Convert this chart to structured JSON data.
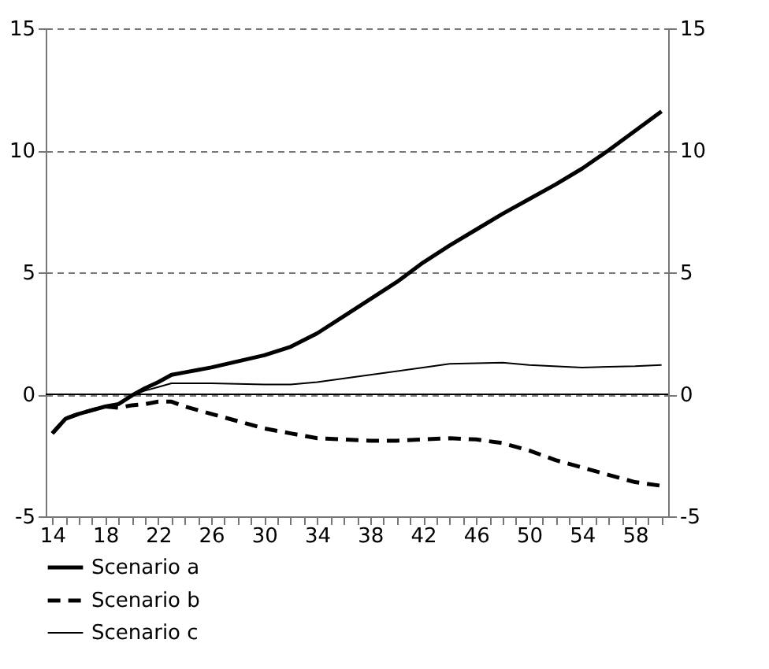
{
  "chart_data": {
    "type": "line",
    "xlim": [
      13.5,
      60.5
    ],
    "xticks": [
      14,
      {
        "value": 15,
        "label": null
      },
      {
        "value": 16,
        "label": null
      },
      {
        "value": 17,
        "label": null
      },
      18,
      {
        "value": 19,
        "label": null
      },
      {
        "value": 20,
        "label": null
      },
      {
        "value": 21,
        "label": null
      },
      22,
      {
        "value": 23,
        "label": null
      },
      {
        "value": 24,
        "label": null
      },
      {
        "value": 25,
        "label": null
      },
      26,
      {
        "value": 27,
        "label": null
      },
      {
        "value": 28,
        "label": null
      },
      {
        "value": 29,
        "label": null
      },
      30,
      {
        "value": 31,
        "label": null
      },
      {
        "value": 32,
        "label": null
      },
      {
        "value": 33,
        "label": null
      },
      34,
      {
        "value": 35,
        "label": null
      },
      {
        "value": 36,
        "label": null
      },
      {
        "value": 37,
        "label": null
      },
      38,
      {
        "value": 39,
        "label": null
      },
      {
        "value": 40,
        "label": null
      },
      {
        "value": 41,
        "label": null
      },
      42,
      {
        "value": 43,
        "label": null
      },
      {
        "value": 44,
        "label": null
      },
      {
        "value": 45,
        "label": null
      },
      46,
      {
        "value": 47,
        "label": null
      },
      {
        "value": 48,
        "label": null
      },
      {
        "value": 49,
        "label": null
      },
      50,
      {
        "value": 51,
        "label": null
      },
      {
        "value": 52,
        "label": null
      },
      {
        "value": 53,
        "label": null
      },
      54,
      {
        "value": 55,
        "label": null
      },
      {
        "value": 56,
        "label": null
      },
      {
        "value": 57,
        "label": null
      },
      58,
      {
        "value": 59,
        "label": null
      },
      {
        "value": 60,
        "label": null
      }
    ],
    "ylim": [
      -5,
      15
    ],
    "yticks": [
      -5,
      0,
      5,
      10,
      15
    ],
    "y2lim": [
      -5,
      15
    ],
    "y2ticks": [
      -5,
      0,
      5,
      10,
      15
    ],
    "grid": "y",
    "legend": "bottom left",
    "marker": "none",
    "ref_lines": [
      {
        "axis": "y",
        "value": 0,
        "color": "#000000",
        "line_style": "solid"
      }
    ],
    "series": [
      {
        "name": "Scenario a",
        "color": "#000000",
        "line_style": "solid",
        "x": [
          14,
          15,
          16,
          17,
          18,
          19,
          20,
          21,
          22,
          23,
          24,
          26,
          28,
          30,
          32,
          34,
          36,
          38,
          40,
          42,
          44,
          46,
          48,
          50,
          52,
          54,
          56,
          58,
          60
        ],
        "values": [
          -1.6,
          -1.0,
          -0.8,
          -0.65,
          -0.5,
          -0.4,
          -0.05,
          0.25,
          0.5,
          0.8,
          0.9,
          1.1,
          1.35,
          1.6,
          1.95,
          2.5,
          3.2,
          3.9,
          4.6,
          5.4,
          6.1,
          6.75,
          7.4,
          8.0,
          8.6,
          9.25,
          10.0,
          10.8,
          11.6
        ]
      },
      {
        "name": "Scenario b",
        "color": "#000000",
        "line_style": "dashed",
        "x": [
          14,
          15,
          16,
          17,
          18,
          19,
          20,
          21,
          22,
          23,
          24,
          26,
          28,
          30,
          32,
          34,
          36,
          38,
          40,
          42,
          44,
          46,
          48,
          50,
          52,
          54,
          56,
          58,
          60
        ],
        "values": [
          -1.6,
          -1.0,
          -0.8,
          -0.65,
          -0.5,
          -0.55,
          -0.45,
          -0.4,
          -0.3,
          -0.3,
          -0.5,
          -0.8,
          -1.1,
          -1.4,
          -1.6,
          -1.8,
          -1.85,
          -1.9,
          -1.9,
          -1.85,
          -1.8,
          -1.85,
          -2.0,
          -2.3,
          -2.7,
          -3.0,
          -3.3,
          -3.6,
          -3.75
        ]
      },
      {
        "name": "Scenario c",
        "color": "#000000",
        "line_style": "solid",
        "x": [
          14,
          15,
          16,
          17,
          18,
          19,
          20,
          21,
          22,
          23,
          26,
          30,
          32,
          34,
          38,
          42,
          44,
          48,
          50,
          54,
          58,
          60
        ],
        "values": [
          -1.6,
          -1.0,
          -0.8,
          -0.65,
          -0.5,
          -0.4,
          -0.05,
          0.15,
          0.3,
          0.45,
          0.45,
          0.4,
          0.4,
          0.5,
          0.8,
          1.1,
          1.25,
          1.3,
          1.2,
          1.1,
          1.15,
          1.2
        ]
      }
    ]
  }
}
